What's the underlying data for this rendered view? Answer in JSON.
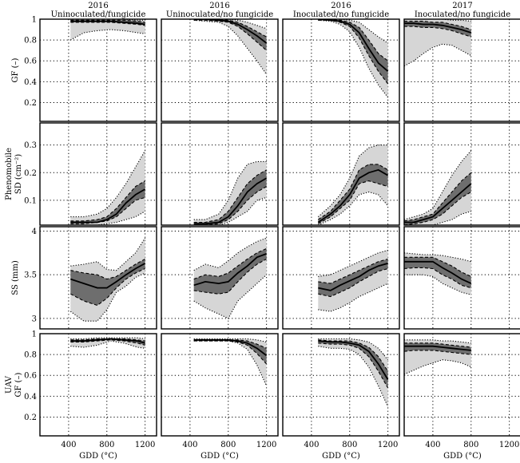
{
  "chart_data": {
    "type": "line",
    "description_band_style": "median line, dark band = interquartile range, light band = full range",
    "columns": [
      {
        "year": "2016",
        "treatment": "Uninoculated/fungicide"
      },
      {
        "year": "2016",
        "treatment": "Uninoculated/no fungicide"
      },
      {
        "year": "2016",
        "treatment": "Inoculated/no fungicide"
      },
      {
        "year": "2017",
        "treatment": "Inoculated/no fungicide"
      }
    ],
    "xlabel": "GDD (°C)",
    "xlim": [
      100,
      1320
    ],
    "xticks": [
      400,
      800,
      1200
    ],
    "rows": [
      {
        "key": "gf",
        "ylabel": [
          "GF (–)"
        ],
        "ylim": [
          0.02,
          1.0
        ],
        "yticks": [
          0.2,
          0.4,
          0.6,
          0.8,
          1.0
        ],
        "ytick_labels": [
          "0.2",
          "0.4",
          "0.6",
          "0.8",
          "1"
        ]
      },
      {
        "key": "sd",
        "ylabel": [
          "Phenomobile",
          "SD (cm⁻²)"
        ],
        "ylim": [
          0.01,
          0.38
        ],
        "yticks": [
          0.1,
          0.2,
          0.3
        ],
        "ytick_labels": [
          "0.1",
          "0.2",
          "0.3"
        ]
      },
      {
        "key": "ss",
        "ylabel": [
          "SS (mm)"
        ],
        "ylim": [
          2.88,
          4.05
        ],
        "yticks": [
          3.0,
          3.5,
          4.0
        ],
        "ytick_labels": [
          "3",
          "3.5",
          "4"
        ]
      },
      {
        "key": "uav",
        "ylabel": [
          "UAV",
          "GF (–)"
        ],
        "ylim": [
          0.02,
          1.0
        ],
        "yticks": [
          0.2,
          0.4,
          0.6,
          0.8,
          1.0
        ],
        "ytick_labels": [
          "0.2",
          "0.4",
          "0.6",
          "0.8",
          "1"
        ]
      }
    ],
    "panels": [
      [
        {
          "x": [
            420,
            560,
            700,
            840,
            980,
            1120,
            1200
          ],
          "min": [
            0.8,
            0.87,
            0.89,
            0.9,
            0.89,
            0.87,
            0.86
          ],
          "q1": [
            0.97,
            0.97,
            0.97,
            0.97,
            0.96,
            0.95,
            0.94
          ],
          "median": [
            0.98,
            0.98,
            0.98,
            0.98,
            0.97,
            0.96,
            0.95
          ],
          "q3": [
            0.99,
            0.99,
            0.99,
            0.99,
            0.99,
            0.98,
            0.97
          ],
          "max": [
            1.0,
            1.0,
            1.0,
            1.0,
            1.0,
            0.99,
            0.99
          ]
        },
        {
          "x": [
            440,
            560,
            700,
            800,
            900,
            1000,
            1100,
            1200
          ],
          "min": [
            0.99,
            0.98,
            0.97,
            0.93,
            0.84,
            0.72,
            0.6,
            0.47
          ],
          "q1": [
            0.99,
            0.99,
            0.98,
            0.97,
            0.93,
            0.86,
            0.78,
            0.7
          ],
          "median": [
            1.0,
            1.0,
            0.99,
            0.98,
            0.95,
            0.9,
            0.84,
            0.77
          ],
          "q3": [
            1.0,
            1.0,
            1.0,
            0.99,
            0.97,
            0.93,
            0.88,
            0.83
          ],
          "max": [
            1.0,
            1.0,
            1.0,
            1.0,
            0.99,
            0.97,
            0.94,
            0.91
          ]
        },
        {
          "x": [
            470,
            600,
            700,
            800,
            900,
            1000,
            1100,
            1200
          ],
          "min": [
            0.99,
            0.98,
            0.95,
            0.88,
            0.73,
            0.53,
            0.37,
            0.25
          ],
          "q1": [
            0.99,
            0.99,
            0.97,
            0.93,
            0.82,
            0.65,
            0.5,
            0.38
          ],
          "median": [
            1.0,
            0.99,
            0.98,
            0.95,
            0.87,
            0.72,
            0.58,
            0.5
          ],
          "q3": [
            1.0,
            1.0,
            0.99,
            0.97,
            0.92,
            0.8,
            0.67,
            0.6
          ],
          "max": [
            1.0,
            1.0,
            1.0,
            0.99,
            0.97,
            0.9,
            0.83,
            0.77
          ]
        },
        {
          "x": [
            100,
            200,
            300,
            400,
            500,
            600,
            700,
            800
          ],
          "min": [
            0.55,
            0.6,
            0.67,
            0.73,
            0.76,
            0.75,
            0.7,
            0.65
          ],
          "q1": [
            0.93,
            0.93,
            0.92,
            0.92,
            0.91,
            0.89,
            0.86,
            0.83
          ],
          "median": [
            0.96,
            0.96,
            0.95,
            0.95,
            0.94,
            0.92,
            0.9,
            0.87
          ],
          "q3": [
            0.98,
            0.98,
            0.98,
            0.97,
            0.97,
            0.95,
            0.93,
            0.9
          ],
          "max": [
            1.0,
            1.0,
            1.0,
            1.0,
            1.0,
            0.99,
            0.99,
            0.98
          ]
        }
      ],
      [
        {
          "x": [
            420,
            560,
            700,
            800,
            900,
            1000,
            1100,
            1200
          ],
          "min": [
            0.01,
            0.01,
            0.01,
            0.015,
            0.02,
            0.03,
            0.04,
            0.06
          ],
          "q1": [
            0.015,
            0.015,
            0.02,
            0.025,
            0.04,
            0.07,
            0.1,
            0.11
          ],
          "median": [
            0.02,
            0.02,
            0.02,
            0.03,
            0.05,
            0.09,
            0.12,
            0.14
          ],
          "q3": [
            0.025,
            0.025,
            0.03,
            0.04,
            0.07,
            0.11,
            0.15,
            0.17
          ],
          "max": [
            0.04,
            0.04,
            0.05,
            0.07,
            0.11,
            0.16,
            0.22,
            0.28
          ]
        },
        {
          "x": [
            440,
            560,
            700,
            800,
            900,
            1000,
            1100,
            1200
          ],
          "min": [
            0.005,
            0.005,
            0.01,
            0.02,
            0.04,
            0.06,
            0.1,
            0.11
          ],
          "q1": [
            0.01,
            0.01,
            0.015,
            0.03,
            0.06,
            0.1,
            0.13,
            0.15
          ],
          "median": [
            0.015,
            0.015,
            0.02,
            0.04,
            0.08,
            0.13,
            0.16,
            0.18
          ],
          "q3": [
            0.02,
            0.02,
            0.03,
            0.06,
            0.11,
            0.16,
            0.19,
            0.21
          ],
          "max": [
            0.03,
            0.03,
            0.05,
            0.1,
            0.18,
            0.23,
            0.24,
            0.24
          ]
        },
        {
          "x": [
            470,
            600,
            700,
            800,
            900,
            1000,
            1100,
            1200
          ],
          "min": [
            0.01,
            0.03,
            0.05,
            0.08,
            0.12,
            0.13,
            0.12,
            0.08
          ],
          "q1": [
            0.015,
            0.04,
            0.07,
            0.1,
            0.16,
            0.17,
            0.16,
            0.15
          ],
          "median": [
            0.02,
            0.05,
            0.08,
            0.12,
            0.18,
            0.2,
            0.21,
            0.19
          ],
          "q3": [
            0.03,
            0.06,
            0.1,
            0.14,
            0.21,
            0.23,
            0.23,
            0.21
          ],
          "max": [
            0.04,
            0.08,
            0.12,
            0.18,
            0.26,
            0.29,
            0.3,
            0.3
          ]
        },
        {
          "x": [
            100,
            200,
            300,
            400,
            500,
            600,
            700,
            800
          ],
          "min": [
            0.005,
            0.005,
            0.01,
            0.01,
            0.02,
            0.03,
            0.05,
            0.06
          ],
          "q1": [
            0.01,
            0.015,
            0.02,
            0.03,
            0.05,
            0.08,
            0.11,
            0.13
          ],
          "median": [
            0.02,
            0.02,
            0.03,
            0.04,
            0.07,
            0.1,
            0.13,
            0.16
          ],
          "q3": [
            0.025,
            0.03,
            0.04,
            0.05,
            0.09,
            0.13,
            0.17,
            0.2
          ],
          "max": [
            0.03,
            0.04,
            0.05,
            0.07,
            0.13,
            0.19,
            0.24,
            0.28
          ]
        }
      ],
      [
        {
          "x": [
            420,
            560,
            700,
            800,
            900,
            1000,
            1100,
            1200
          ],
          "min": [
            3.08,
            2.97,
            2.97,
            3.1,
            3.3,
            3.37,
            3.47,
            3.52
          ],
          "q1": [
            3.28,
            3.2,
            3.15,
            3.23,
            3.35,
            3.45,
            3.52,
            3.57
          ],
          "median": [
            3.45,
            3.4,
            3.35,
            3.35,
            3.42,
            3.5,
            3.57,
            3.63
          ],
          "q3": [
            3.55,
            3.52,
            3.5,
            3.45,
            3.48,
            3.55,
            3.62,
            3.68
          ],
          "max": [
            3.6,
            3.62,
            3.65,
            3.56,
            3.55,
            3.65,
            3.75,
            3.92
          ]
        },
        {
          "x": [
            440,
            560,
            700,
            800,
            900,
            1000,
            1100,
            1200
          ],
          "min": [
            3.2,
            3.12,
            3.05,
            3.0,
            3.2,
            3.3,
            3.4,
            3.5
          ],
          "q1": [
            3.32,
            3.3,
            3.28,
            3.3,
            3.42,
            3.53,
            3.62,
            3.68
          ],
          "median": [
            3.38,
            3.42,
            3.4,
            3.42,
            3.52,
            3.6,
            3.7,
            3.74
          ],
          "q3": [
            3.45,
            3.5,
            3.48,
            3.52,
            3.6,
            3.68,
            3.75,
            3.8
          ],
          "max": [
            3.55,
            3.62,
            3.58,
            3.66,
            3.75,
            3.82,
            3.88,
            3.92
          ]
        },
        {
          "x": [
            470,
            600,
            700,
            800,
            900,
            1000,
            1100,
            1200
          ],
          "min": [
            3.1,
            3.08,
            3.12,
            3.18,
            3.25,
            3.3,
            3.35,
            3.4
          ],
          "q1": [
            3.28,
            3.25,
            3.3,
            3.35,
            3.42,
            3.48,
            3.54,
            3.57
          ],
          "median": [
            3.35,
            3.32,
            3.38,
            3.43,
            3.48,
            3.55,
            3.6,
            3.63
          ],
          "q3": [
            3.42,
            3.4,
            3.45,
            3.5,
            3.55,
            3.6,
            3.65,
            3.68
          ],
          "max": [
            3.48,
            3.5,
            3.55,
            3.6,
            3.65,
            3.7,
            3.75,
            3.78
          ]
        },
        {
          "x": [
            100,
            200,
            300,
            400,
            500,
            600,
            700,
            800
          ],
          "min": [
            3.5,
            3.5,
            3.5,
            3.48,
            3.4,
            3.35,
            3.3,
            3.27
          ],
          "q1": [
            3.57,
            3.58,
            3.58,
            3.57,
            3.5,
            3.45,
            3.38,
            3.35
          ],
          "median": [
            3.65,
            3.65,
            3.65,
            3.65,
            3.58,
            3.52,
            3.45,
            3.4
          ],
          "q3": [
            3.7,
            3.7,
            3.7,
            3.7,
            3.65,
            3.6,
            3.53,
            3.48
          ],
          "max": [
            3.75,
            3.74,
            3.73,
            3.73,
            3.72,
            3.7,
            3.68,
            3.65
          ]
        }
      ],
      [
        {
          "x": [
            420,
            560,
            700,
            840,
            980,
            1120,
            1200
          ],
          "min": [
            0.88,
            0.87,
            0.89,
            0.93,
            0.91,
            0.87,
            0.86
          ],
          "q1": [
            0.92,
            0.92,
            0.93,
            0.94,
            0.93,
            0.91,
            0.89
          ],
          "median": [
            0.93,
            0.93,
            0.94,
            0.95,
            0.94,
            0.93,
            0.91
          ],
          "q3": [
            0.94,
            0.94,
            0.95,
            0.95,
            0.95,
            0.94,
            0.93
          ],
          "max": [
            0.95,
            0.95,
            0.96,
            0.96,
            0.96,
            0.96,
            0.95
          ]
        },
        {
          "x": [
            440,
            560,
            700,
            800,
            900,
            1000,
            1100,
            1200
          ],
          "min": [
            0.93,
            0.93,
            0.93,
            0.93,
            0.91,
            0.85,
            0.7,
            0.5
          ],
          "q1": [
            0.93,
            0.93,
            0.93,
            0.93,
            0.92,
            0.89,
            0.81,
            0.71
          ],
          "median": [
            0.94,
            0.94,
            0.94,
            0.94,
            0.93,
            0.91,
            0.86,
            0.79
          ],
          "q3": [
            0.94,
            0.94,
            0.94,
            0.94,
            0.94,
            0.93,
            0.9,
            0.86
          ],
          "max": [
            0.95,
            0.95,
            0.95,
            0.95,
            0.95,
            0.95,
            0.94,
            0.92
          ]
        },
        {
          "x": [
            470,
            600,
            700,
            800,
            900,
            1000,
            1100,
            1200
          ],
          "min": [
            0.88,
            0.86,
            0.86,
            0.85,
            0.8,
            0.68,
            0.5,
            0.3
          ],
          "q1": [
            0.91,
            0.9,
            0.9,
            0.89,
            0.86,
            0.78,
            0.64,
            0.48
          ],
          "median": [
            0.93,
            0.92,
            0.92,
            0.91,
            0.89,
            0.83,
            0.71,
            0.56
          ],
          "q3": [
            0.94,
            0.93,
            0.93,
            0.93,
            0.91,
            0.87,
            0.78,
            0.64
          ],
          "max": [
            0.95,
            0.95,
            0.95,
            0.95,
            0.94,
            0.92,
            0.86,
            0.75
          ]
        },
        {
          "x": [
            100,
            200,
            300,
            400,
            500,
            600,
            700,
            800
          ],
          "min": [
            0.61,
            0.65,
            0.69,
            0.72,
            0.75,
            0.74,
            0.72,
            0.68
          ],
          "q1": [
            0.83,
            0.84,
            0.84,
            0.84,
            0.83,
            0.82,
            0.81,
            0.8
          ],
          "median": [
            0.88,
            0.88,
            0.88,
            0.88,
            0.87,
            0.86,
            0.85,
            0.84
          ],
          "q3": [
            0.91,
            0.91,
            0.91,
            0.91,
            0.9,
            0.89,
            0.88,
            0.87
          ],
          "max": [
            0.94,
            0.94,
            0.94,
            0.94,
            0.93,
            0.93,
            0.92,
            0.91
          ]
        }
      ]
    ]
  }
}
